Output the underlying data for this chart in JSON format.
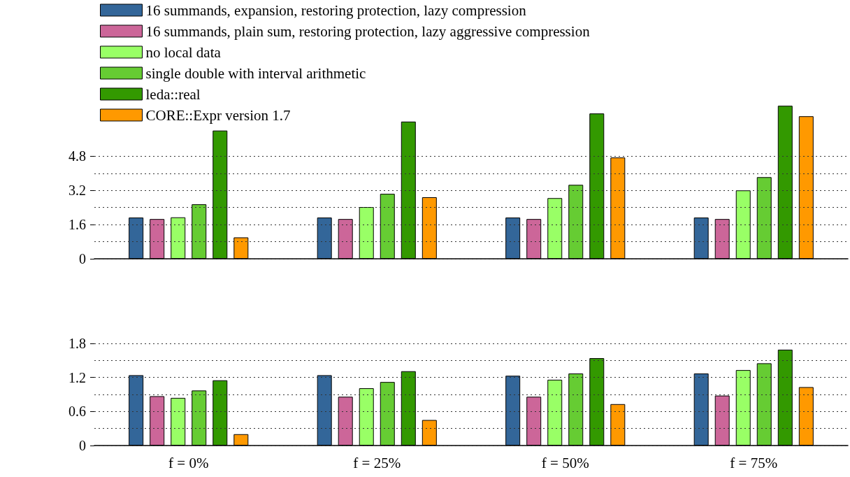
{
  "chart_data": [
    {
      "type": "bar",
      "categories": [
        null,
        null,
        null,
        null
      ],
      "ylim": [
        0,
        7.2
      ],
      "yticks": [
        0,
        {
          "value": 0.8,
          "label": null
        },
        1.6,
        {
          "value": 2.4,
          "label": null
        },
        3.2,
        {
          "value": 4.0,
          "label": null
        },
        4.8
      ],
      "grid": "y",
      "legend": "top left",
      "tick_labels": "y",
      "series": [
        {
          "name": "16 summands, expansion, restoring protection, lazy compression",
          "color": "#336699",
          "values": [
            1.93,
            1.93,
            1.93,
            1.93
          ]
        },
        {
          "name": "16 summands, plain sum, restoring protection, lazy aggressive compression",
          "color": "#cc6699",
          "values": [
            1.86,
            1.86,
            1.86,
            1.86
          ]
        },
        {
          "name": "no local data",
          "color": "#99ff66",
          "values": [
            1.94,
            2.42,
            2.84,
            3.2
          ]
        },
        {
          "name": "single double with interval arithmetic",
          "color": "#66cc33",
          "values": [
            2.55,
            3.04,
            3.46,
            3.82
          ]
        },
        {
          "name": "leda::real",
          "color": "#339900",
          "values": [
            6.0,
            6.42,
            6.8,
            7.16
          ]
        },
        {
          "name": "CORE::Expr version 1.7",
          "color": "#ff9900",
          "values": [
            1.0,
            2.88,
            4.74,
            6.67
          ]
        }
      ]
    },
    {
      "type": "bar",
      "categories": [
        "f = 0%",
        "f = 25%",
        "f = 50%",
        "f = 75%"
      ],
      "ylim": [
        0,
        1.8
      ],
      "yticks": [
        0,
        {
          "value": 0.3,
          "label": null
        },
        0.6,
        {
          "value": 0.9,
          "label": null
        },
        1.2,
        {
          "value": 1.5,
          "label": null
        },
        1.8
      ],
      "grid": "y",
      "legend": false,
      "series": [
        {
          "color": "#336699",
          "values": [
            1.24,
            1.24,
            1.23,
            1.27
          ]
        },
        {
          "color": "#cc6699",
          "values": [
            0.87,
            0.86,
            0.86,
            0.88
          ]
        },
        {
          "color": "#99ff66",
          "values": [
            0.84,
            1.01,
            1.16,
            1.33
          ]
        },
        {
          "color": "#66cc33",
          "values": [
            0.97,
            1.12,
            1.27,
            1.45
          ]
        },
        {
          "color": "#339900",
          "values": [
            1.15,
            1.31,
            1.54,
            1.69
          ]
        },
        {
          "color": "#ff9900",
          "values": [
            0.2,
            0.45,
            0.73,
            1.03
          ]
        }
      ]
    }
  ]
}
